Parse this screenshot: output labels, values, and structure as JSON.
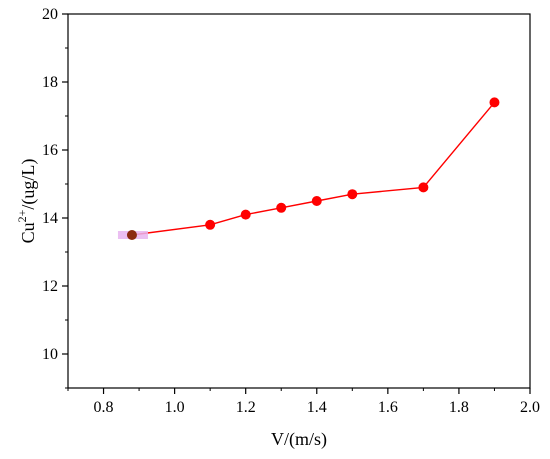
{
  "chart_data": {
    "type": "line",
    "xlabel": "V/(m/s)",
    "ylabel": {
      "base": "Cu",
      "superscript": "2+",
      "rest": "/(ug/L)"
    },
    "xlim": [
      0.7,
      2.0
    ],
    "ylim": [
      9,
      20
    ],
    "xticks": [
      "0.8",
      "1.0",
      "1.2",
      "1.4",
      "1.6",
      "1.8",
      "2.0"
    ],
    "yticks": [
      "10",
      "12",
      "14",
      "16",
      "18",
      "20"
    ],
    "grid": false,
    "series": [
      {
        "color": "#ff0000",
        "x": [
          0.88,
          1.1,
          1.2,
          1.3,
          1.4,
          1.5,
          1.7,
          1.9
        ],
        "y": [
          13.5,
          13.8,
          14.1,
          14.3,
          14.5,
          14.7,
          14.9,
          17.4
        ]
      }
    ],
    "first_point_color": "#8b2a10",
    "first_point_highlight": "#e7b4f0"
  }
}
